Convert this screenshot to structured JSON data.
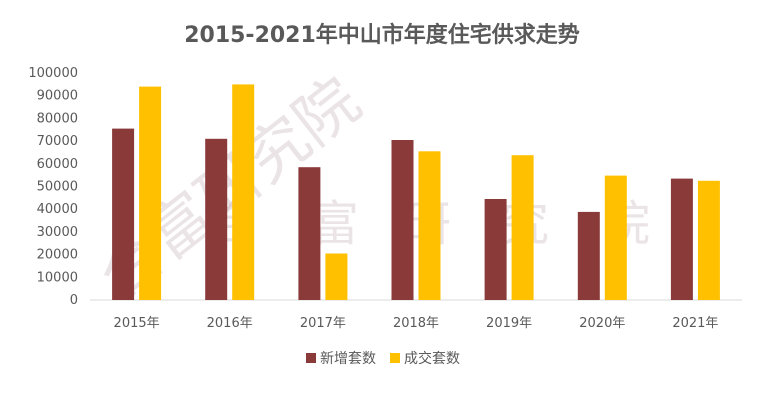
{
  "chart_data": {
    "type": "bar",
    "title": "2015-2021年中山市年度住宅供求走势",
    "categories": [
      "2015年",
      "2016年",
      "2017年",
      "2018年",
      "2019年",
      "2020年",
      "2021年"
    ],
    "series": [
      {
        "name": "新增套数",
        "color": "#8b3a3a",
        "values": [
          75500,
          71000,
          58500,
          70500,
          44500,
          38800,
          53500
        ]
      },
      {
        "name": "成交套数",
        "color": "#ffc000",
        "values": [
          94000,
          95000,
          20500,
          65500,
          63800,
          54800,
          52500
        ]
      }
    ],
    "ylim": [
      0,
      100000
    ],
    "yticks": [
      "0",
      "10000",
      "20000",
      "30000",
      "40000",
      "50000",
      "60000",
      "70000",
      "80000",
      "90000",
      "100000"
    ],
    "legend_position": "bottom",
    "grid": false
  },
  "watermark": {
    "diagonal": "合富研究院",
    "horizontal": [
      "合",
      "富",
      "研",
      "究",
      "院"
    ]
  }
}
